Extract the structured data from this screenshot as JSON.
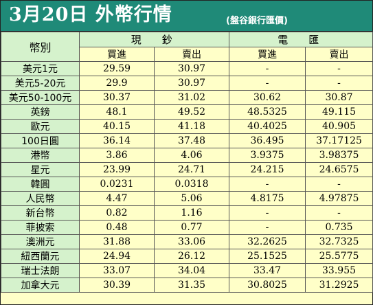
{
  "header": {
    "title": "3月20日 外幣行情",
    "subtitle": "(盤谷銀行匯價)"
  },
  "table": {
    "currency_col_label": "幣別",
    "groups": [
      "現　鈔",
      "電　匯"
    ],
    "subheaders": [
      "買進",
      "賣出",
      "買進",
      "賣出"
    ],
    "rows": [
      {
        "name": "美元1元",
        "cash_buy": "29.59",
        "cash_sell": "30.97",
        "tt_buy": "-",
        "tt_sell": "-"
      },
      {
        "name": "美元5-20元",
        "cash_buy": "29.9",
        "cash_sell": "30.97",
        "tt_buy": "-",
        "tt_sell": "-"
      },
      {
        "name": "美元50-100元",
        "cash_buy": "30.37",
        "cash_sell": "31.02",
        "tt_buy": "30.62",
        "tt_sell": "30.87"
      },
      {
        "name": "英鎊",
        "cash_buy": "48.1",
        "cash_sell": "49.52",
        "tt_buy": "48.5325",
        "tt_sell": "49.115"
      },
      {
        "name": "歐元",
        "cash_buy": "40.15",
        "cash_sell": "41.18",
        "tt_buy": "40.4025",
        "tt_sell": "40.905"
      },
      {
        "name": "100日圓",
        "cash_buy": "36.14",
        "cash_sell": "37.48",
        "tt_buy": "36.495",
        "tt_sell": "37.17125"
      },
      {
        "name": "港幣",
        "cash_buy": "3.86",
        "cash_sell": "4.06",
        "tt_buy": "3.9375",
        "tt_sell": "3.98375"
      },
      {
        "name": "星元",
        "cash_buy": "23.99",
        "cash_sell": "24.71",
        "tt_buy": "24.215",
        "tt_sell": "24.6575"
      },
      {
        "name": "韓圓",
        "cash_buy": "0.0231",
        "cash_sell": "0.0318",
        "tt_buy": "-",
        "tt_sell": "-"
      },
      {
        "name": "人民幣",
        "cash_buy": "4.47",
        "cash_sell": "5.06",
        "tt_buy": "4.8175",
        "tt_sell": "4.97875"
      },
      {
        "name": "新台幣",
        "cash_buy": "0.82",
        "cash_sell": "1.16",
        "tt_buy": "-",
        "tt_sell": "-"
      },
      {
        "name": "菲披索",
        "cash_buy": "0.48",
        "cash_sell": "0.77",
        "tt_buy": "-",
        "tt_sell": "0.735"
      },
      {
        "name": "澳洲元",
        "cash_buy": "31.88",
        "cash_sell": "33.06",
        "tt_buy": "32.2625",
        "tt_sell": "32.7325"
      },
      {
        "name": "紐西蘭元",
        "cash_buy": "24.94",
        "cash_sell": "26.12",
        "tt_buy": "25.1525",
        "tt_sell": "25.5775"
      },
      {
        "name": "瑞士法朗",
        "cash_buy": "33.07",
        "cash_sell": "34.04",
        "tt_buy": "33.47",
        "tt_sell": "33.955"
      },
      {
        "name": "加拿大元",
        "cash_buy": "30.39",
        "cash_sell": "31.35",
        "tt_buy": "30.8025",
        "tt_sell": "31.2925"
      }
    ]
  },
  "colors": {
    "banner": "#1f8a78",
    "label_cells": "#d5f2cc",
    "value_cells": "#ffffc8",
    "title_text": "#ffffff"
  }
}
